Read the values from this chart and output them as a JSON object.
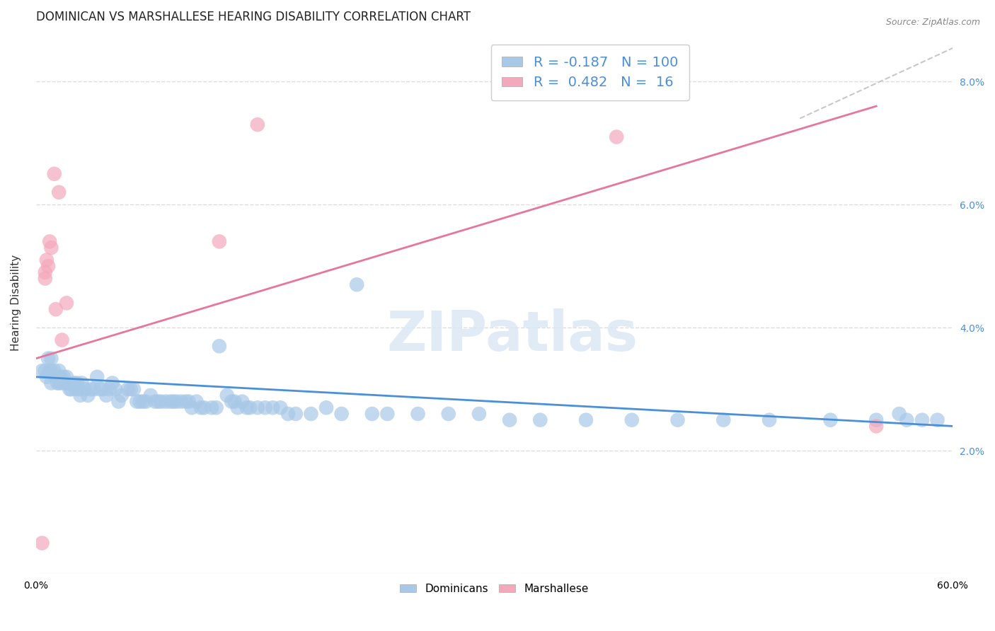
{
  "title": "DOMINICAN VS MARSHALLESE HEARING DISABILITY CORRELATION CHART",
  "source": "Source: ZipAtlas.com",
  "ylabel": "Hearing Disability",
  "xlim": [
    0.0,
    0.6
  ],
  "ylim": [
    0.0,
    0.088
  ],
  "yticks": [
    0.02,
    0.04,
    0.06,
    0.08
  ],
  "ytick_labels": [
    "2.0%",
    "4.0%",
    "6.0%",
    "8.0%"
  ],
  "xticks": [
    0.0,
    0.1,
    0.2,
    0.3,
    0.4,
    0.5,
    0.6
  ],
  "xtick_labels": [
    "0.0%",
    "",
    "",
    "",
    "",
    "",
    "60.0%"
  ],
  "blue_R": -0.187,
  "blue_N": 100,
  "pink_R": 0.482,
  "pink_N": 16,
  "blue_color": "#a8c8e8",
  "pink_color": "#f4a8bb",
  "blue_line_color": "#4a90d9",
  "pink_line_color": "#e8769a",
  "dashed_line_color": "#c8c8c8",
  "blue_scatter_x": [
    0.004,
    0.006,
    0.007,
    0.008,
    0.009,
    0.01,
    0.01,
    0.01,
    0.012,
    0.013,
    0.014,
    0.015,
    0.015,
    0.016,
    0.017,
    0.018,
    0.019,
    0.02,
    0.021,
    0.022,
    0.023,
    0.025,
    0.026,
    0.027,
    0.028,
    0.029,
    0.03,
    0.032,
    0.034,
    0.036,
    0.038,
    0.04,
    0.042,
    0.044,
    0.046,
    0.048,
    0.05,
    0.052,
    0.054,
    0.056,
    0.06,
    0.062,
    0.064,
    0.066,
    0.068,
    0.07,
    0.072,
    0.075,
    0.078,
    0.08,
    0.082,
    0.085,
    0.088,
    0.09,
    0.092,
    0.095,
    0.098,
    0.1,
    0.102,
    0.105,
    0.108,
    0.11,
    0.115,
    0.118,
    0.12,
    0.125,
    0.128,
    0.13,
    0.132,
    0.135,
    0.138,
    0.14,
    0.145,
    0.15,
    0.155,
    0.16,
    0.165,
    0.17,
    0.18,
    0.19,
    0.2,
    0.21,
    0.22,
    0.23,
    0.25,
    0.27,
    0.29,
    0.31,
    0.33,
    0.36,
    0.39,
    0.42,
    0.45,
    0.48,
    0.52,
    0.55,
    0.565,
    0.57,
    0.58,
    0.59
  ],
  "blue_scatter_y": [
    0.033,
    0.033,
    0.032,
    0.035,
    0.033,
    0.035,
    0.033,
    0.031,
    0.033,
    0.032,
    0.031,
    0.033,
    0.031,
    0.032,
    0.031,
    0.032,
    0.031,
    0.032,
    0.031,
    0.03,
    0.03,
    0.031,
    0.03,
    0.031,
    0.03,
    0.029,
    0.031,
    0.03,
    0.029,
    0.03,
    0.03,
    0.032,
    0.03,
    0.03,
    0.029,
    0.03,
    0.031,
    0.03,
    0.028,
    0.029,
    0.03,
    0.03,
    0.03,
    0.028,
    0.028,
    0.028,
    0.028,
    0.029,
    0.028,
    0.028,
    0.028,
    0.028,
    0.028,
    0.028,
    0.028,
    0.028,
    0.028,
    0.028,
    0.027,
    0.028,
    0.027,
    0.027,
    0.027,
    0.027,
    0.037,
    0.029,
    0.028,
    0.028,
    0.027,
    0.028,
    0.027,
    0.027,
    0.027,
    0.027,
    0.027,
    0.027,
    0.026,
    0.026,
    0.026,
    0.027,
    0.026,
    0.047,
    0.026,
    0.026,
    0.026,
    0.026,
    0.026,
    0.025,
    0.025,
    0.025,
    0.025,
    0.025,
    0.025,
    0.025,
    0.025,
    0.025,
    0.026,
    0.025,
    0.025,
    0.025
  ],
  "pink_scatter_x": [
    0.004,
    0.006,
    0.007,
    0.008,
    0.009,
    0.01,
    0.012,
    0.013,
    0.015,
    0.017,
    0.02,
    0.12,
    0.145,
    0.38,
    0.55,
    0.006
  ],
  "pink_scatter_y": [
    0.005,
    0.049,
    0.051,
    0.05,
    0.054,
    0.053,
    0.065,
    0.043,
    0.062,
    0.038,
    0.044,
    0.054,
    0.073,
    0.071,
    0.024,
    0.048
  ],
  "blue_trend_x": [
    0.0,
    0.6
  ],
  "blue_trend_y": [
    0.032,
    0.024
  ],
  "pink_trend_x": [
    0.0,
    0.55
  ],
  "pink_trend_y": [
    0.035,
    0.076
  ],
  "dashed_trend_x": [
    0.5,
    0.605
  ],
  "dashed_trend_y": [
    0.074,
    0.086
  ],
  "background_color": "#ffffff",
  "grid_color": "#dddddd",
  "title_fontsize": 12,
  "axis_label_fontsize": 11,
  "tick_fontsize": 10,
  "legend_fontsize": 14
}
